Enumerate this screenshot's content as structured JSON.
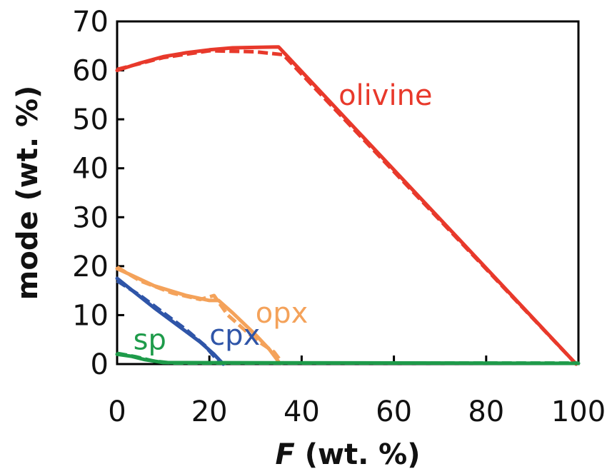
{
  "chart_data": {
    "type": "line",
    "xlabel": {
      "italic_part": "F",
      "rest": " (wt. %)"
    },
    "ylabel": "mode (wt. %)",
    "xlim": [
      0,
      100
    ],
    "ylim": [
      0,
      70
    ],
    "x_ticks": [
      0,
      20,
      40,
      60,
      80,
      100
    ],
    "y_ticks": [
      0,
      10,
      20,
      30,
      40,
      50,
      60,
      70
    ],
    "grid": false,
    "legend": "none",
    "series": [
      {
        "name": "olivine",
        "color": "#e8392b",
        "label_pos": [
          48,
          55
        ],
        "solid": [
          [
            0,
            60
          ],
          [
            5,
            61.5
          ],
          [
            10,
            62.8
          ],
          [
            15,
            63.6
          ],
          [
            20,
            64.2
          ],
          [
            25,
            64.6
          ],
          [
            35,
            64.8
          ],
          [
            99.5,
            0
          ]
        ],
        "dashed": [
          [
            0,
            60.2
          ],
          [
            10,
            62.6
          ],
          [
            20,
            64.0
          ],
          [
            30,
            63.8
          ],
          [
            36,
            63.2
          ],
          [
            99.5,
            0
          ]
        ]
      },
      {
        "name": "opx",
        "color": "#f4a25a",
        "label_pos": [
          30,
          10.5
        ],
        "solid": [
          [
            0,
            19.5
          ],
          [
            3,
            18.2
          ],
          [
            8,
            16.0
          ],
          [
            15,
            14.0
          ],
          [
            20,
            13.0
          ],
          [
            22,
            13.0
          ],
          [
            25,
            10.5
          ],
          [
            30,
            6.0
          ],
          [
            33,
            3.0
          ],
          [
            35,
            0.5
          ]
        ],
        "dashed": [
          [
            0,
            19.8
          ],
          [
            5,
            17.0
          ],
          [
            12,
            14.5
          ],
          [
            18,
            13.2
          ],
          [
            21,
            14.0
          ],
          [
            24,
            10.0
          ],
          [
            30,
            5.0
          ],
          [
            34,
            2.5
          ],
          [
            36,
            0
          ]
        ]
      },
      {
        "name": "cpx",
        "color": "#2f55a8",
        "label_pos": [
          20,
          6
        ],
        "solid": [
          [
            0,
            17.5
          ],
          [
            4,
            14.5
          ],
          [
            8,
            11.5
          ],
          [
            13,
            8.0
          ],
          [
            18,
            4.5
          ],
          [
            21,
            2.0
          ],
          [
            23,
            0
          ]
        ],
        "dashed": [
          [
            0,
            17.0
          ],
          [
            5,
            14.0
          ],
          [
            10,
            10.5
          ],
          [
            15,
            7.0
          ],
          [
            19,
            3.8
          ],
          [
            22,
            0.5
          ]
        ]
      },
      {
        "name": "sp",
        "color": "#1e9b4a",
        "label_pos": [
          3.5,
          5
        ],
        "solid": [
          [
            0,
            2
          ],
          [
            3,
            1.6
          ],
          [
            6,
            0.9
          ],
          [
            10,
            0.3
          ],
          [
            100,
            0.15
          ]
        ],
        "dashed": [
          [
            0,
            2.2
          ],
          [
            4,
            1.5
          ],
          [
            8,
            0.6
          ],
          [
            12,
            0.2
          ],
          [
            100,
            0.2
          ]
        ]
      }
    ]
  }
}
